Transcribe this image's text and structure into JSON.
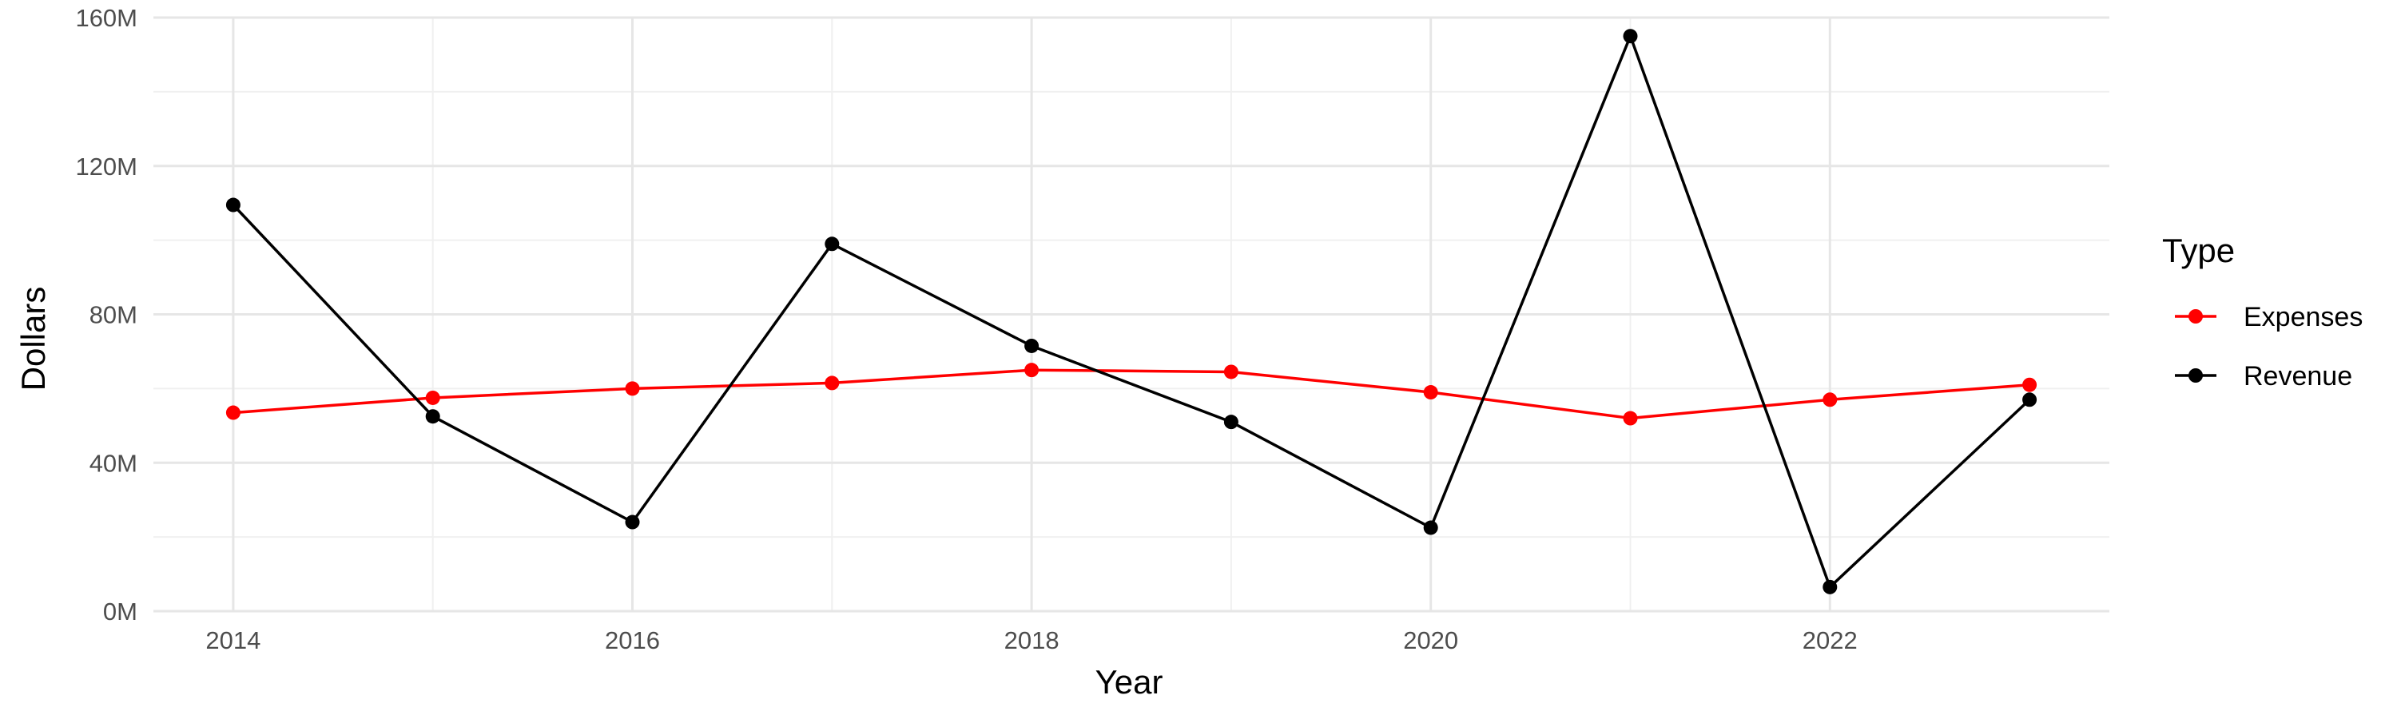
{
  "chart_data": {
    "type": "line",
    "title": "",
    "xlabel": "Year",
    "ylabel": "Dollars",
    "xlim": [
      2013.6,
      2023.4
    ],
    "ylim": [
      0,
      160000000
    ],
    "x_ticks": [
      2014,
      2016,
      2018,
      2020,
      2022
    ],
    "y_ticks": [
      0,
      40000000,
      80000000,
      120000000,
      160000000
    ],
    "y_tick_labels": [
      "0M",
      "40M",
      "80M",
      "120M",
      "160M"
    ],
    "x": [
      2014,
      2015,
      2016,
      2017,
      2018,
      2019,
      2020,
      2021,
      2022,
      2023
    ],
    "series": [
      {
        "name": "Expenses",
        "color": "#ff0000",
        "values": [
          53500000,
          57500000,
          60000000,
          61500000,
          65000000,
          64500000,
          59000000,
          52000000,
          57000000,
          61000000
        ]
      },
      {
        "name": "Revenue",
        "color": "#000000",
        "values": [
          109500000,
          52500000,
          24000000,
          99000000,
          71500000,
          51000000,
          22500000,
          155000000,
          6500000,
          57000000
        ]
      }
    ],
    "legend": {
      "title": "Type",
      "position": "right"
    },
    "grid": true
  }
}
